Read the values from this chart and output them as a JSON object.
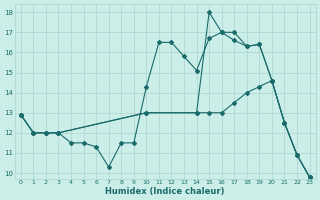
{
  "xlabel": "Humidex (Indice chaleur)",
  "bg_color": "#cceee8",
  "grid_color": "#aad4ce",
  "line_color": "#1a6b6b",
  "xlim": [
    -0.5,
    23.5
  ],
  "ylim": [
    9.7,
    18.4
  ],
  "xticks": [
    0,
    1,
    2,
    3,
    4,
    5,
    6,
    7,
    8,
    9,
    10,
    11,
    12,
    13,
    14,
    15,
    16,
    17,
    18,
    19,
    20,
    21,
    22,
    23
  ],
  "yticks": [
    10,
    11,
    12,
    13,
    14,
    15,
    16,
    17,
    18
  ],
  "line1_x": [
    0,
    1,
    2,
    3,
    4,
    5,
    6,
    7,
    8,
    9,
    10,
    11,
    12,
    13,
    14,
    15,
    16,
    17,
    18,
    19,
    20,
    21,
    22,
    23
  ],
  "line1_y": [
    12.9,
    12.0,
    12.0,
    12.0,
    11.5,
    11.5,
    11.3,
    10.3,
    11.5,
    11.5,
    14.3,
    16.5,
    16.5,
    15.8,
    15.1,
    16.7,
    17.0,
    17.0,
    16.3,
    16.4,
    14.6,
    12.5,
    10.9,
    9.8
  ],
  "line2_x": [
    0,
    1,
    2,
    3,
    10,
    14,
    15,
    16,
    17,
    18,
    19,
    20,
    21,
    22,
    23
  ],
  "line2_y": [
    12.9,
    12.0,
    12.0,
    12.0,
    13.0,
    13.0,
    18.0,
    17.0,
    16.6,
    16.3,
    16.4,
    14.6,
    12.5,
    10.9,
    9.8
  ],
  "line3_x": [
    0,
    1,
    2,
    3,
    10,
    14,
    15,
    16,
    17,
    18,
    19,
    20,
    21,
    22,
    23
  ],
  "line3_y": [
    12.9,
    12.0,
    12.0,
    12.0,
    13.0,
    13.0,
    13.0,
    13.0,
    13.5,
    14.0,
    14.3,
    14.6,
    12.5,
    10.9,
    9.8
  ]
}
